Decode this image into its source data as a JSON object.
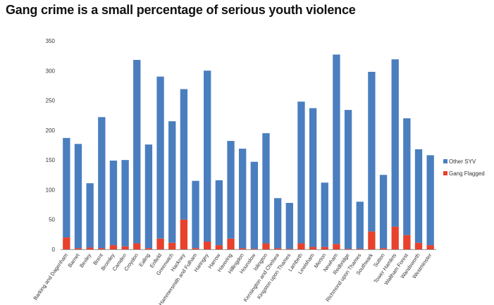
{
  "title": "Gang crime is a small percentage of serious youth violence",
  "chart_data": {
    "type": "bar",
    "stacked": true,
    "title": "",
    "xlabel": "",
    "ylabel": "",
    "ylim": [
      0,
      350
    ],
    "yticks": [
      "0",
      "50",
      "100",
      "150",
      "200",
      "250",
      "300",
      "350"
    ],
    "grid": false,
    "legend_position": "right",
    "categories": [
      "Barking and Dagenham",
      "Barnet",
      "Bexley",
      "Brent",
      "Bromley",
      "Camden",
      "Croydon",
      "Ealing",
      "Enfield",
      "Greenwich",
      "Hackney",
      "Hammersmith and Fulham",
      "Haringey",
      "Harrow",
      "Havering",
      "Hillingdon",
      "Hounslow",
      "Islington",
      "Kensington and Chelsea",
      "Kingston upon Thames",
      "Lambeth",
      "Lewisham",
      "Merton",
      "Newham",
      "Redbridge",
      "Richmond upon Thames",
      "Southwark",
      "Sutton",
      "Tower Hamlets",
      "Waltham Forest",
      "Wandsworth",
      "Westminster"
    ],
    "series": [
      {
        "name": "Gang Flagged",
        "color": "#e8412c",
        "values": [
          20,
          2,
          3,
          2,
          7,
          5,
          10,
          2,
          18,
          11,
          50,
          2,
          13,
          7,
          18,
          2,
          1,
          10,
          2,
          1,
          10,
          4,
          4,
          9,
          1,
          1,
          30,
          2,
          38,
          24,
          11,
          7
        ]
      },
      {
        "name": "Other SYV",
        "color": "#4a7ebf",
        "values": [
          167,
          175,
          108,
          220,
          142,
          145,
          308,
          174,
          272,
          204,
          219,
          113,
          287,
          109,
          164,
          167,
          146,
          185,
          84,
          77,
          238,
          233,
          108,
          318,
          233,
          79,
          268,
          123,
          281,
          196,
          157,
          151
        ]
      }
    ]
  }
}
